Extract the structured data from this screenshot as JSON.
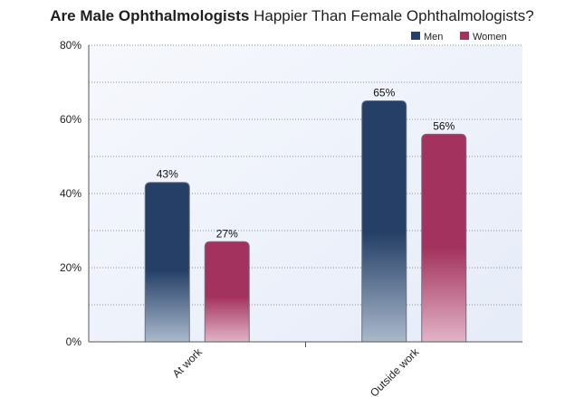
{
  "chart_data": {
    "type": "bar",
    "title_bold": "Are Male Ophthalmologists",
    "title_rest": "Happier Than Female Ophthalmologists?",
    "categories": [
      "At work",
      "Outside work"
    ],
    "series": [
      {
        "name": "Men",
        "values": [
          43,
          65
        ],
        "labels": [
          "43%",
          "65%"
        ],
        "color": "#253f66"
      },
      {
        "name": "Women",
        "values": [
          27,
          56
        ],
        "labels": [
          "27%",
          "56%"
        ],
        "color": "#a3335e"
      }
    ],
    "y_ticks": [
      0,
      20,
      40,
      60,
      80
    ],
    "y_tick_labels": [
      "0%",
      "20%",
      "40%",
      "60%",
      "80%"
    ],
    "ylim": [
      0,
      80
    ],
    "legend_position": "top-right",
    "grid": true
  }
}
